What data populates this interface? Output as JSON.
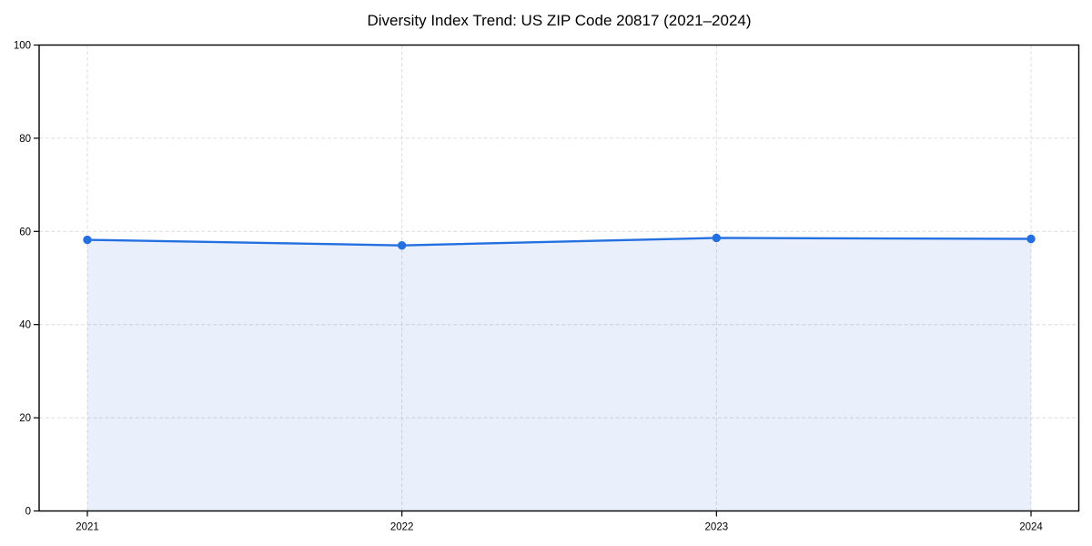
{
  "chart_data": {
    "type": "line",
    "title": "Diversity Index Trend: US ZIP Code 20817 (2021–2024)",
    "categories": [
      "2021",
      "2022",
      "2023",
      "2024"
    ],
    "series": [
      {
        "name": "Diversity Index",
        "values": [
          58.2,
          57.0,
          58.6,
          58.4
        ]
      }
    ],
    "xlabel": "",
    "ylabel": "",
    "ylim": [
      0,
      100
    ],
    "yticks": [
      0,
      20,
      40,
      60,
      80,
      100
    ],
    "grid": true,
    "grid_style": "dashed",
    "legend": false,
    "marker": "circle",
    "colors": {
      "line": "#2470e0",
      "marker": "#2470e0",
      "fill": "#2470e0",
      "fill_opacity": 0.1,
      "gridline": "#dcdcdc",
      "spine": "#000000",
      "text": "#000000",
      "background": "#ffffff"
    }
  }
}
